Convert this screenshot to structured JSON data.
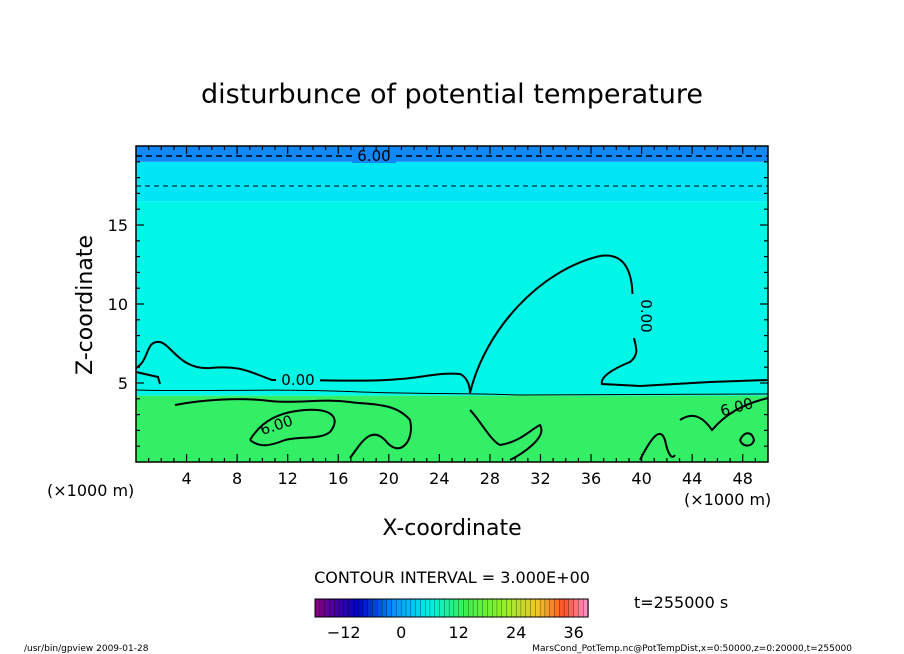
{
  "chart_data": {
    "type": "heatmap",
    "title": "disturbunce of potential temperature",
    "xlabel": "X-coordinate",
    "ylabel": "Z-coordinate",
    "x_unit_left": "(×1000 m)",
    "x_unit_right": "(×1000 m)",
    "xlim": [
      0,
      50
    ],
    "ylim": [
      0,
      20
    ],
    "xticks": [
      4,
      8,
      12,
      16,
      20,
      24,
      28,
      32,
      36,
      40,
      44,
      48
    ],
    "yticks": [
      5,
      10,
      15
    ],
    "contour_interval_text": "CONTOUR INTERVAL = 3.000E+00",
    "contour_labels": [
      "6.00",
      "0.00",
      "0.00",
      "6.00",
      "6.00"
    ],
    "colorbar": {
      "ticks": [
        -12,
        0,
        12,
        24,
        36
      ],
      "min": -18,
      "max": 39
    },
    "time_text": "t=255000 s",
    "bands": [
      {
        "z0": 0,
        "z1": 4.2,
        "value": 4.5,
        "color": "#33ef66"
      },
      {
        "z0": 4.2,
        "z1": 16.5,
        "value": 1.5,
        "color": "#00f6e6"
      },
      {
        "z0": 16.5,
        "z1": 19.0,
        "value": -1.5,
        "color": "#00e6f6"
      },
      {
        "z0": 19.0,
        "z1": 20.0,
        "value": -7.5,
        "color": "#1188f8"
      }
    ],
    "footer_left": "/usr/bin/gpview  2009-01-28",
    "footer_right": "MarsCond_PotTemp.nc@PotTempDist,x=0:50000,z=0:20000,t=255000"
  }
}
